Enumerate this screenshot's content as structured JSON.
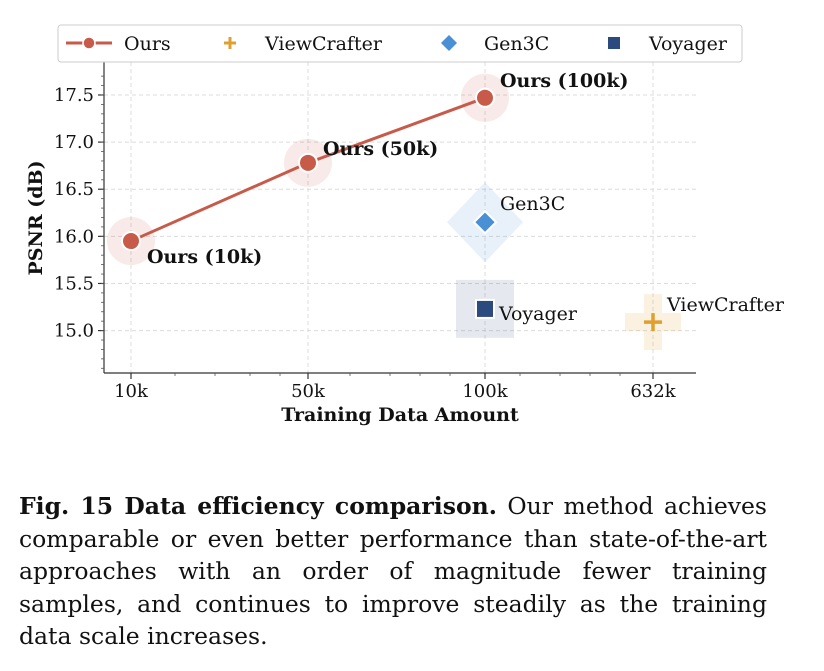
{
  "chart_data": {
    "type": "scatter",
    "xlabel": "Training Data Amount",
    "ylabel": "PSNR (dB)",
    "x_tick_labels": [
      "10k",
      "50k",
      "100k",
      "632k"
    ],
    "y_ticks": [
      "15.0",
      "15.5",
      "16.0",
      "16.5",
      "17.0",
      "17.5"
    ],
    "ylim": [
      14.55,
      17.85
    ],
    "grid": true,
    "legend_position": "top",
    "legend": [
      {
        "label": "Ours",
        "marker": "line-circle",
        "color": "#c85a4a"
      },
      {
        "label": "ViewCrafter",
        "marker": "plus",
        "color": "#e0a030"
      },
      {
        "label": "Gen3C",
        "marker": "diamond",
        "color": "#4a90d4"
      },
      {
        "label": "Voyager",
        "marker": "square",
        "color": "#2b4a7e"
      }
    ],
    "series": [
      {
        "name": "Ours",
        "marker": "circle",
        "color": "#c85a4a",
        "points": [
          {
            "x": "10k",
            "y": 15.95,
            "label": "Ours (10k)"
          },
          {
            "x": "50k",
            "y": 16.78,
            "label": "Ours (50k)"
          },
          {
            "x": "100k",
            "y": 17.47,
            "label": "Ours (100k)"
          }
        ]
      },
      {
        "name": "Gen3C",
        "marker": "diamond",
        "color": "#4a90d4",
        "points": [
          {
            "x": "100k",
            "y": 16.15,
            "label": "Gen3C"
          }
        ]
      },
      {
        "name": "Voyager",
        "marker": "square",
        "color": "#2b4a7e",
        "points": [
          {
            "x": "100k",
            "y": 15.23,
            "label": "Voyager"
          }
        ]
      },
      {
        "name": "ViewCrafter",
        "marker": "plus",
        "color": "#e0a030",
        "points": [
          {
            "x": "632k",
            "y": 15.09,
            "label": "ViewCrafter"
          }
        ]
      }
    ]
  },
  "caption": {
    "label": "Fig. 15 Data efficiency comparison.",
    "text": "Our method achieves comparable or even better performance than state-of-the-art approaches with an order of magnitude fewer training samples, and continues to improve steadily as the training data scale increases."
  }
}
